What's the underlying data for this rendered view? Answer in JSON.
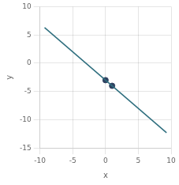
{
  "chart_data": {
    "type": "scatter",
    "xlabel": "x",
    "ylabel": "y",
    "xlim": [
      -10,
      10
    ],
    "ylim": [
      -15,
      10
    ],
    "xticks": [
      -10,
      -5,
      0,
      5,
      10
    ],
    "yticks": [
      -15,
      -10,
      -5,
      0,
      5,
      10
    ],
    "grid": true,
    "series": [
      {
        "type": "line",
        "color": "#2e6e7e",
        "x": [
          -9.3,
          9.3
        ],
        "values": [
          6.3,
          -12.3
        ]
      },
      {
        "type": "scatter",
        "color": "#2e4060",
        "x": [
          0,
          1
        ],
        "values": [
          -3,
          -4
        ]
      }
    ]
  }
}
